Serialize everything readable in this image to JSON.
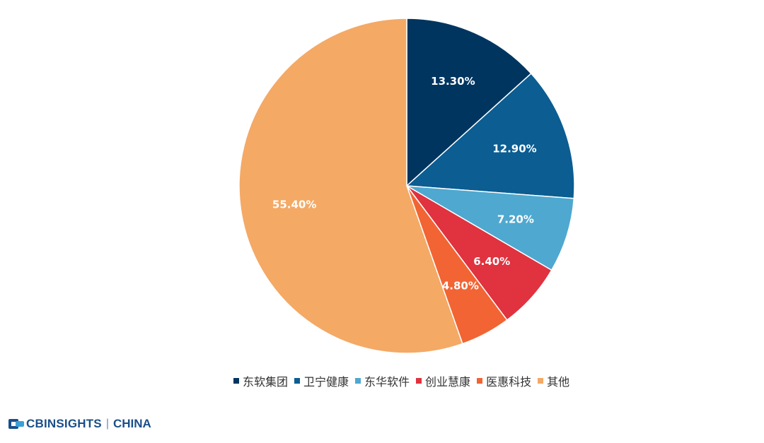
{
  "chart_data": {
    "type": "pie",
    "start_angle_deg": 0,
    "direction": "clockwise",
    "slices": [
      {
        "label": "东软集团",
        "value": 13.3,
        "display": "13.30%",
        "color": "#003560"
      },
      {
        "label": "卫宁健康",
        "value": 12.9,
        "display": "12.90%",
        "color": "#0b5d92"
      },
      {
        "label": "东华软件",
        "value": 7.2,
        "display": "7.20%",
        "color": "#4fa8cf"
      },
      {
        "label": "创业慧康",
        "value": 6.4,
        "display": "6.40%",
        "color": "#e0323f"
      },
      {
        "label": "医惠科技",
        "value": 4.8,
        "display": "4.80%",
        "color": "#f26433"
      },
      {
        "label": "其他",
        "value": 55.4,
        "display": "55.40%",
        "color": "#f4a965"
      }
    ],
    "legend_placement": "bottom"
  },
  "brand": {
    "name": "CBINSIGHTS",
    "separator": "|",
    "region": "CHINA",
    "colors": [
      "#1a4f8a",
      "#3aa0d8"
    ]
  }
}
